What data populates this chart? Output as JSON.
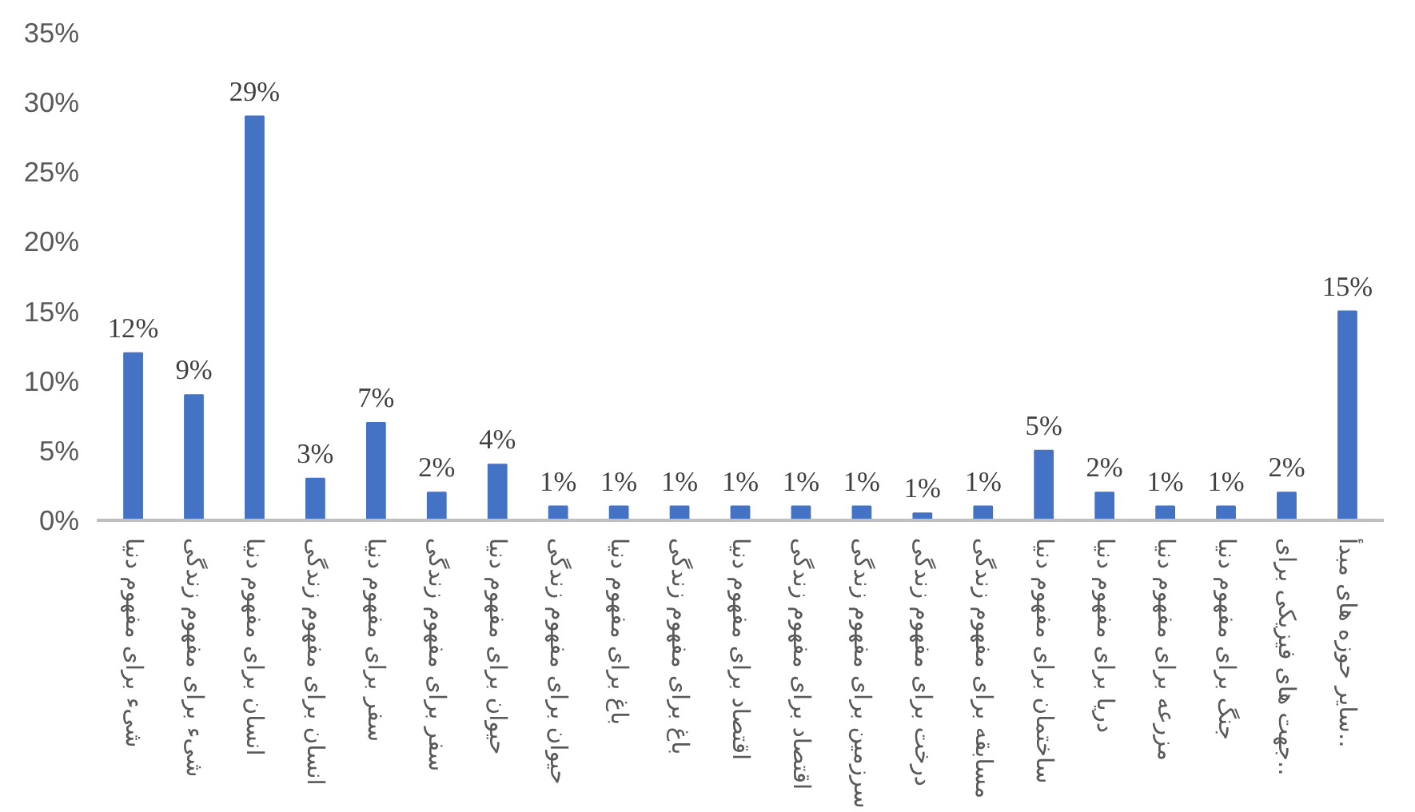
{
  "chart_data": {
    "type": "bar",
    "categories": [
      "شیء برای مفهوم دنیا",
      "شیء برای مفهوم زندگی",
      "انسان برای مفهوم دنیا",
      "انسان برای مفهوم زندگی",
      "سفر برای مفهوم دنیا",
      "سفر برای مفهوم زندگی",
      "حیوان برای مفهوم دنیا",
      "حیوان برای مفهوم زندگی",
      "باغ برای مفهوم دنیا",
      "باغ برای مفهوم زندگی",
      "اقتصاد برای مفهوم دنیا",
      "اقتصاد برای مفهوم زندگی",
      "سرزمین برای مفهوم زندگی",
      "درخت برای مفهوم زندگی",
      "مسابقه برای مفهوم زندگی",
      "ساختمان برای مفهوم دنیا",
      "دریا برای مفهوم دنیا",
      "مزرعه برای مفهوم دنیا",
      "جنگ برای مفهوم دنیا",
      "جهت های فیزیکی برای..",
      "سایر حوزه های مبدأ.."
    ],
    "values": [
      12,
      9,
      29,
      3,
      7,
      2,
      4,
      1,
      1,
      1,
      1,
      1,
      1,
      0.5,
      1,
      5,
      2,
      1,
      1,
      2,
      15
    ],
    "value_labels": [
      "12%",
      "9%",
      "29%",
      "3%",
      "7%",
      "2%",
      "4%",
      "1%",
      "1%",
      "1%",
      "1%",
      "1%",
      "1%",
      "1%",
      "1%",
      "5%",
      "2%",
      "1%",
      "1%",
      "2%",
      "15%"
    ],
    "color": "#4472c4",
    "ylim": [
      0,
      35
    ],
    "yticks": [
      {
        "value": 0,
        "label": "0%"
      },
      {
        "value": 5,
        "label": "5%"
      },
      {
        "value": 10,
        "label": "10%"
      },
      {
        "value": 15,
        "label": "15%"
      },
      {
        "value": 20,
        "label": "20%"
      },
      {
        "value": 25,
        "label": "25%"
      },
      {
        "value": 30,
        "label": "30%"
      },
      {
        "value": 35,
        "label": "35%"
      }
    ],
    "grid": false
  }
}
